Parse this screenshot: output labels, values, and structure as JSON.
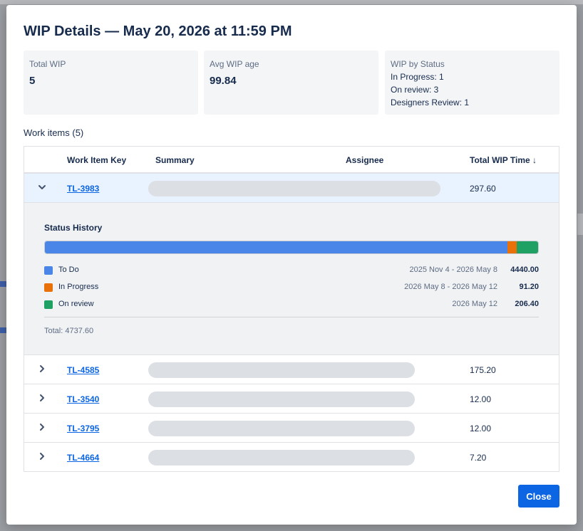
{
  "modal": {
    "title": "WIP Details — May 20, 2026 at 11:59 PM",
    "close_label": "Close"
  },
  "stats": {
    "total_wip": {
      "label": "Total WIP",
      "value": "5"
    },
    "avg_age": {
      "label": "Avg WIP age",
      "value": "99.84"
    },
    "by_status": {
      "label": "WIP by Status",
      "lines": [
        "In Progress: 1",
        "On review: 3",
        "Designers Review: 1"
      ]
    }
  },
  "work_items": {
    "title": "Work items (5)",
    "columns": {
      "key": "Work Item Key",
      "summary": "Summary",
      "assignee": "Assignee",
      "wip_time": "Total WIP Time ↓"
    },
    "rows": [
      {
        "key": "TL-3983",
        "wip_time": "297.60",
        "expanded": true
      },
      {
        "key": "TL-4585",
        "wip_time": "175.20",
        "expanded": false
      },
      {
        "key": "TL-3540",
        "wip_time": "12.00",
        "expanded": false
      },
      {
        "key": "TL-3795",
        "wip_time": "12.00",
        "expanded": false
      },
      {
        "key": "TL-4664",
        "wip_time": "7.20",
        "expanded": false
      }
    ]
  },
  "status_history": {
    "title": "Status History",
    "segments": [
      {
        "name": "To Do",
        "range": "2025 Nov 4 - 2026 May 8",
        "value": "4440.00",
        "amount": 4440.0,
        "color": "#4a86e8"
      },
      {
        "name": "In Progress",
        "range": "2026 May 8 - 2026 May 12",
        "value": "91.20",
        "amount": 91.2,
        "color": "#e8710a"
      },
      {
        "name": "On review",
        "range": "2026 May 12",
        "value": "206.40",
        "amount": 206.4,
        "color": "#1fa163"
      }
    ],
    "total": "Total: 4737.60"
  },
  "colors": {
    "accent": "#0c66e4",
    "expanded_row": "#e9f2ff"
  }
}
